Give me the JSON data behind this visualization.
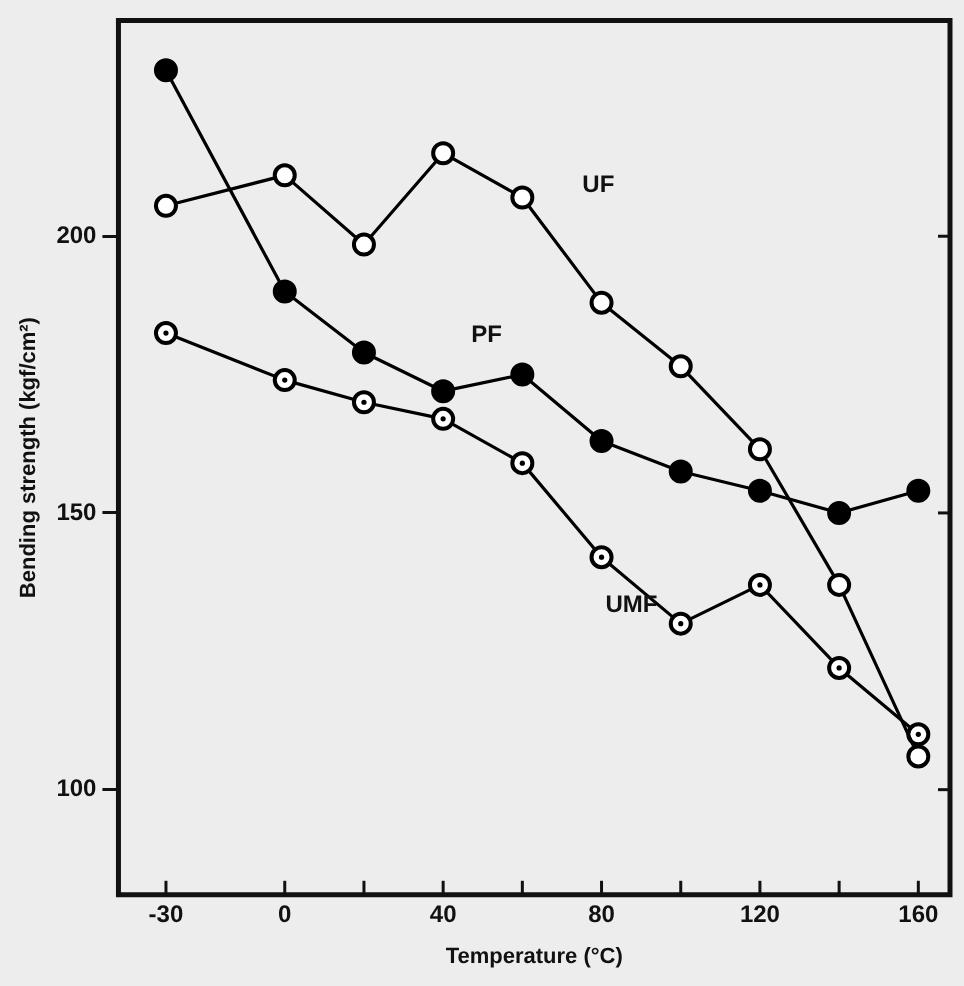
{
  "chart_data": {
    "type": "line",
    "xlabel": "Temperature (°C)",
    "ylabel": "Bending strength (kgf/cm²)",
    "x": [
      -30,
      0,
      20,
      40,
      60,
      80,
      100,
      120,
      140,
      160
    ],
    "series": [
      {
        "name": "PF",
        "color": "#000000",
        "values": [
          230,
          190,
          179,
          172,
          175,
          163,
          157.5,
          154,
          150,
          154
        ]
      },
      {
        "name": "UF",
        "color": "#000000",
        "values": [
          205.5,
          211,
          198.5,
          215,
          207,
          188,
          176.5,
          161.5,
          137,
          106
        ]
      },
      {
        "name": "UMF",
        "color": "#000000",
        "values": [
          182.5,
          174,
          170,
          167,
          159,
          142,
          130,
          137,
          122,
          110
        ]
      }
    ],
    "xlim": [
      -42,
      168
    ],
    "ylim": [
      81,
      239
    ],
    "xticks": [
      -30,
      0,
      {
        "value": 20,
        "label": null
      },
      40,
      {
        "value": 60,
        "label": null
      },
      80,
      {
        "value": 100,
        "label": null
      },
      120,
      {
        "value": 140,
        "label": null
      },
      160
    ],
    "yticks": [
      100,
      150,
      200
    ],
    "grid": false,
    "legend": false,
    "marker": "circle",
    "line_style": "solid"
  }
}
